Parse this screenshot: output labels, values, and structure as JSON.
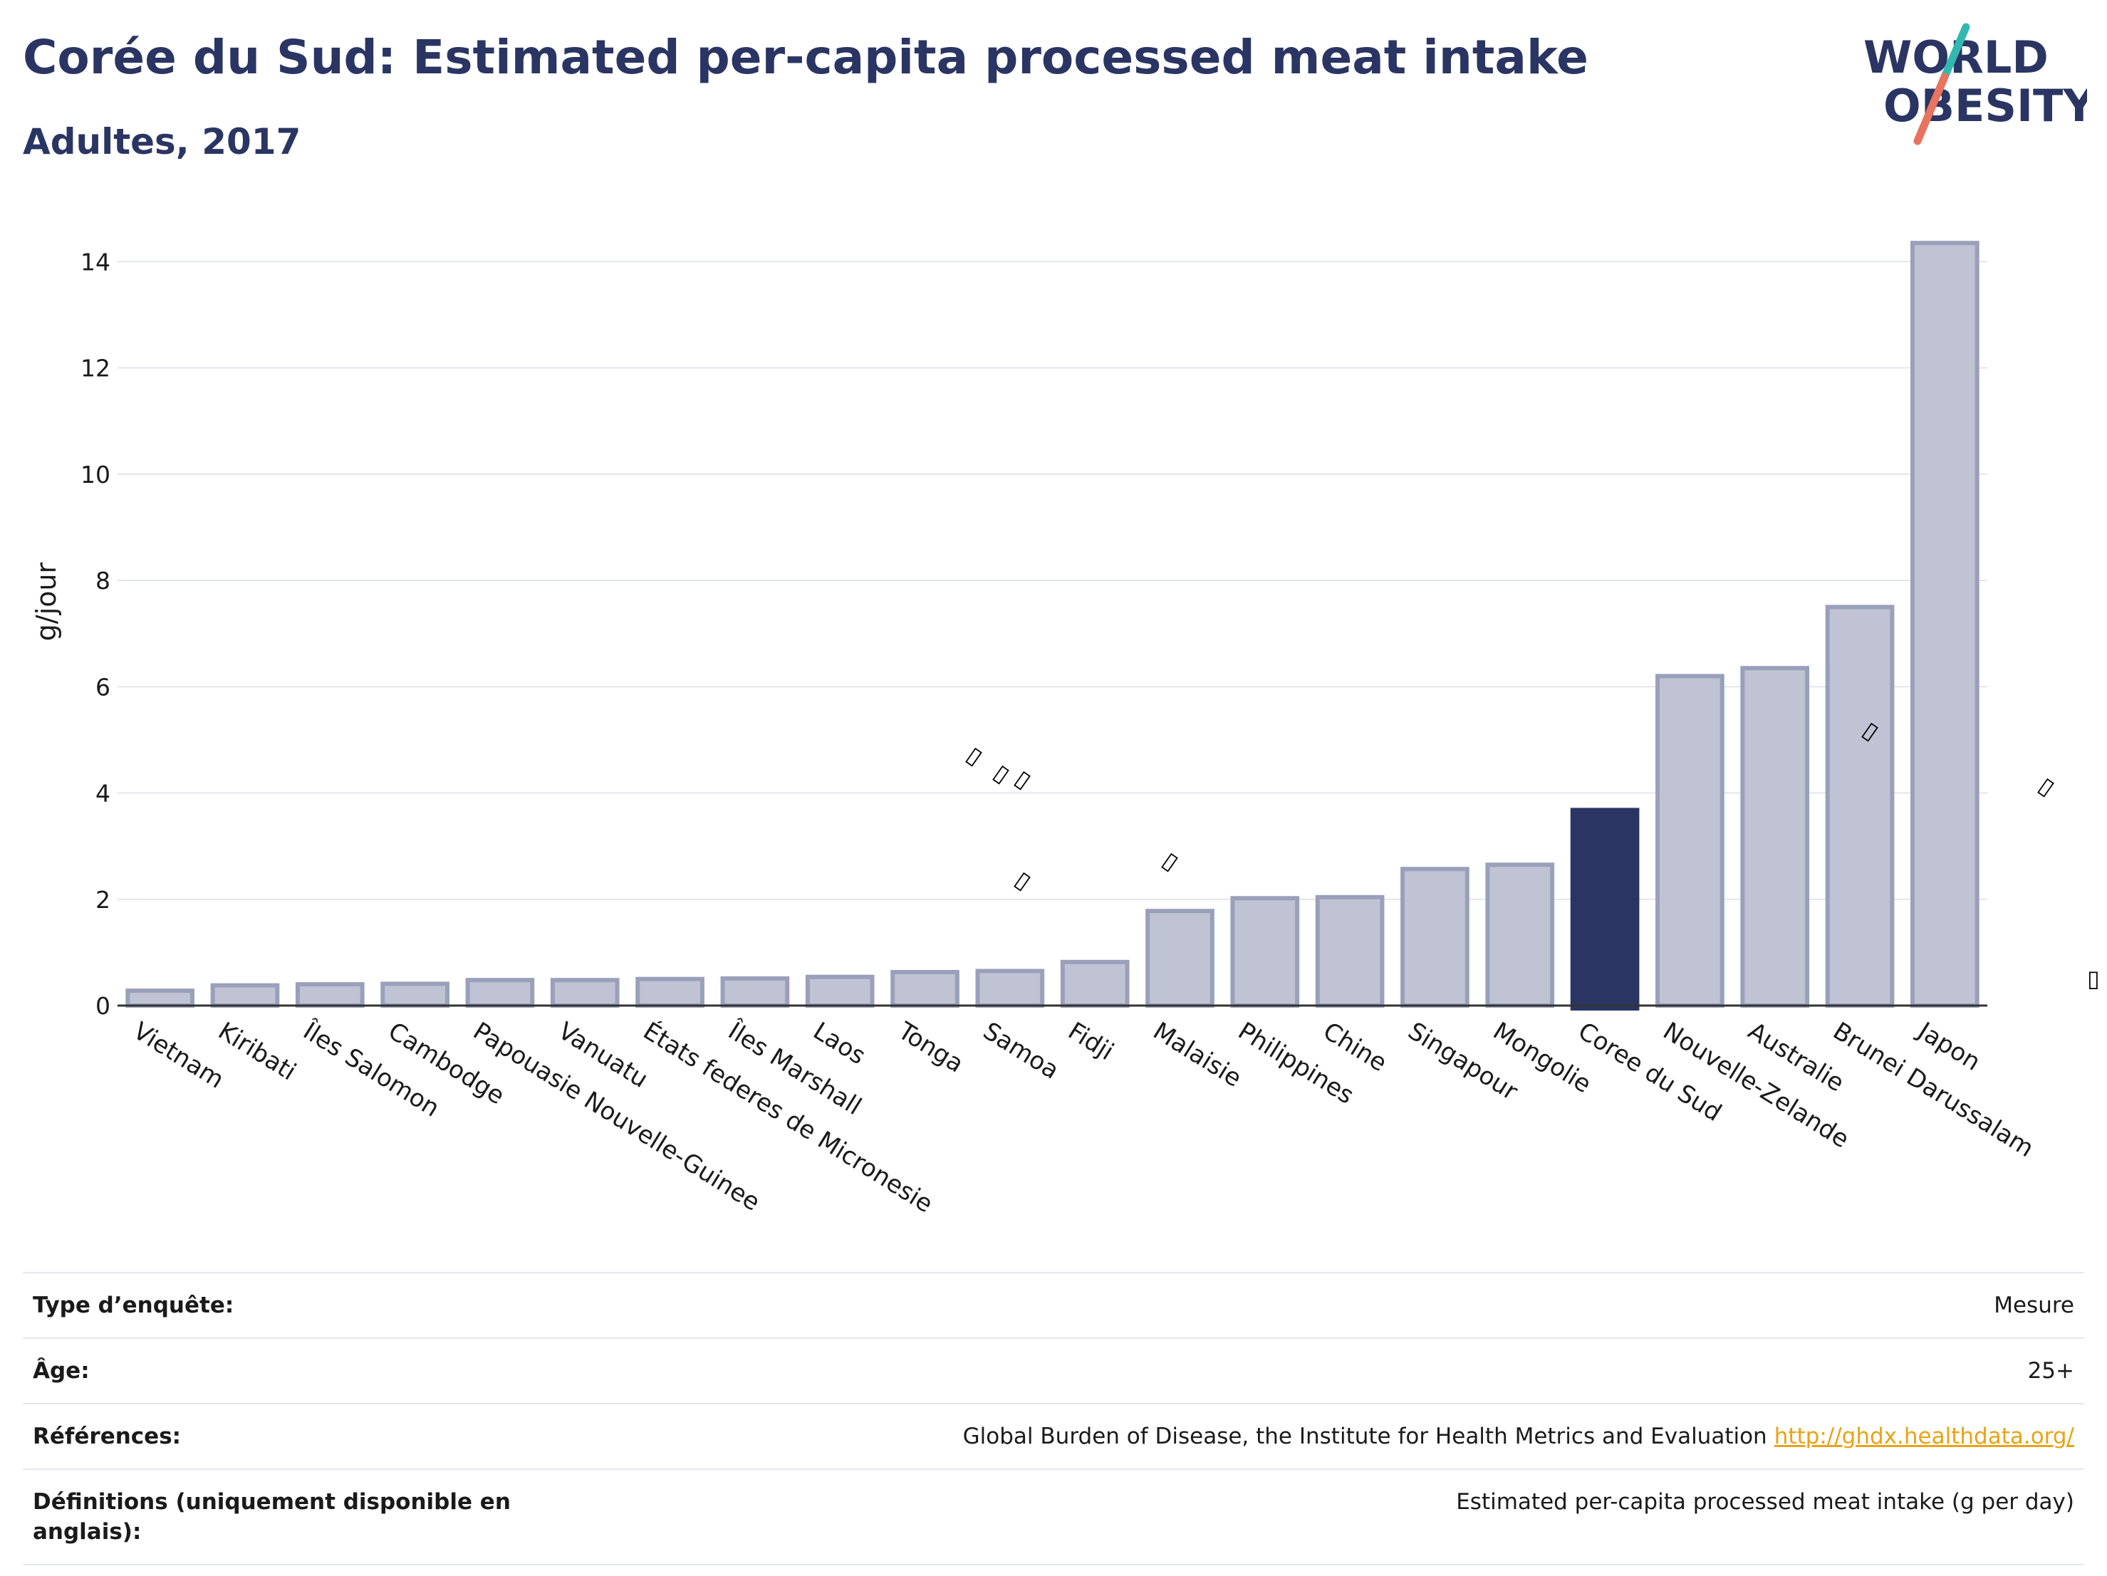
{
  "header": {
    "title": "Corée du Sud: Estimated per-capita processed meat intake",
    "subtitle": "Adultes, 2017"
  },
  "logo": {
    "line1": "WORLD",
    "line2": "OBESITY"
  },
  "colors": {
    "highlight": "#2a3563",
    "bar_fill": "#bfc3d3",
    "bar_stroke": "#9aa0ba",
    "link": "#e8a317"
  },
  "markers": {
    "glyph": "▯"
  },
  "chart_data": {
    "type": "bar",
    "ylabel": "g/jour",
    "ylim": [
      0,
      14.5
    ],
    "yticks": [
      0,
      2,
      4,
      6,
      8,
      10,
      12,
      14
    ],
    "grid": true,
    "highlight": "Coree du Sud",
    "categories": [
      "Vietnam",
      "Kiribati",
      "Îles Salomon",
      "Cambodge",
      "Papouasie Nouvelle-Guinee",
      "Vanuatu",
      "États federes de Micronesie",
      "Îles Marshall",
      "Laos",
      "Tonga",
      "Samoa",
      "Fidji",
      "Malaisie",
      "Philippines",
      "Chine",
      "Singapour",
      "Mongolie",
      "Coree du Sud",
      "Nouvelle-Zelande",
      "Australie",
      "Brunei Darussalam",
      "Japon"
    ],
    "values": [
      0.28,
      0.38,
      0.4,
      0.41,
      0.48,
      0.48,
      0.5,
      0.51,
      0.54,
      0.63,
      0.65,
      0.82,
      1.78,
      2.02,
      2.04,
      2.57,
      2.65,
      3.68,
      6.2,
      6.35,
      7.5,
      14.35
    ]
  },
  "info": [
    {
      "key": "Type d’enquête:",
      "value": "Mesure"
    },
    {
      "key": "Âge:",
      "value": "25+"
    },
    {
      "key": "Références:",
      "value": "Global Burden of Disease, the Institute for Health Metrics and Evaluation",
      "link": "http://ghdx.healthdata.org/"
    },
    {
      "key": "Définitions (uniquement disponible en anglais):",
      "value": "Estimated per-capita processed meat intake (g per day)"
    }
  ]
}
